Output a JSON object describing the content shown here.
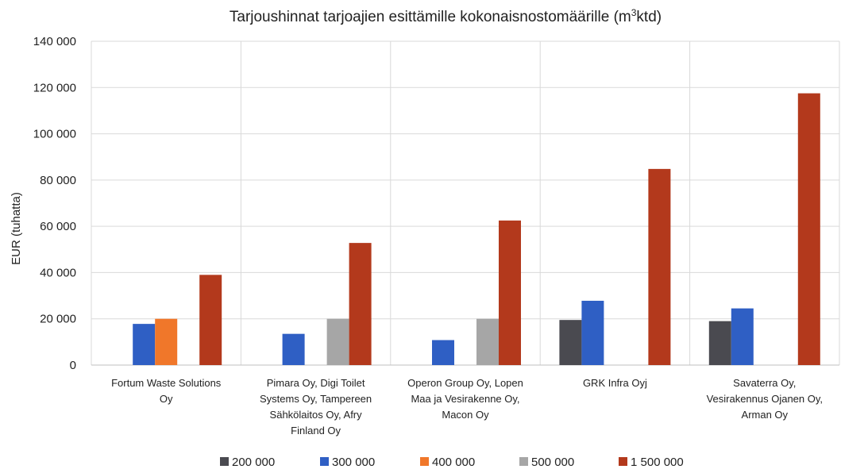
{
  "chart_data": {
    "type": "bar",
    "title": "Tarjoushinnat tarjoajien esittämille kokonaisnostomäärille (m",
    "title_sup": "3",
    "title_tail": "ktd)",
    "ylabel": "EUR (tuhatta)",
    "xlabel": "",
    "ylim": [
      0,
      140000
    ],
    "yticks": [
      0,
      20000,
      40000,
      60000,
      80000,
      100000,
      120000,
      140000
    ],
    "ytick_labels": [
      "0",
      "20 000",
      "40 000",
      "60 000",
      "80 000",
      "100 000",
      "120 000",
      "140 000"
    ],
    "grid": true,
    "legend_position": "bottom",
    "categories": [
      [
        "Fortum Waste Solutions",
        "Oy"
      ],
      [
        "Pimara Oy, Digi Toilet",
        "Systems Oy, Tampereen",
        "Sähkölaitos Oy, Afry",
        "Finland Oy"
      ],
      [
        "Operon Group Oy, Lopen",
        "Maa ja Vesirakenne Oy,",
        "Macon Oy"
      ],
      [
        "GRK Infra Oyj"
      ],
      [
        "Savaterra Oy,",
        "Vesirakennus Ojanen Oy,",
        "Arman Oy"
      ]
    ],
    "series": [
      {
        "name": "200 000",
        "color": "#4a4a50",
        "values": [
          null,
          null,
          null,
          19500,
          19000
        ]
      },
      {
        "name": "300 000",
        "color": "#2f5fc4",
        "values": [
          17800,
          13500,
          10800,
          27800,
          24500
        ]
      },
      {
        "name": "400 000",
        "color": "#f0772a",
        "values": [
          20000,
          null,
          null,
          null,
          null
        ]
      },
      {
        "name": "500 000",
        "color": "#a6a6a6",
        "values": [
          null,
          20000,
          20000,
          null,
          null
        ]
      },
      {
        "name": "1 500 000",
        "color": "#b3391c",
        "values": [
          39000,
          52800,
          62500,
          84800,
          117500
        ]
      }
    ]
  }
}
